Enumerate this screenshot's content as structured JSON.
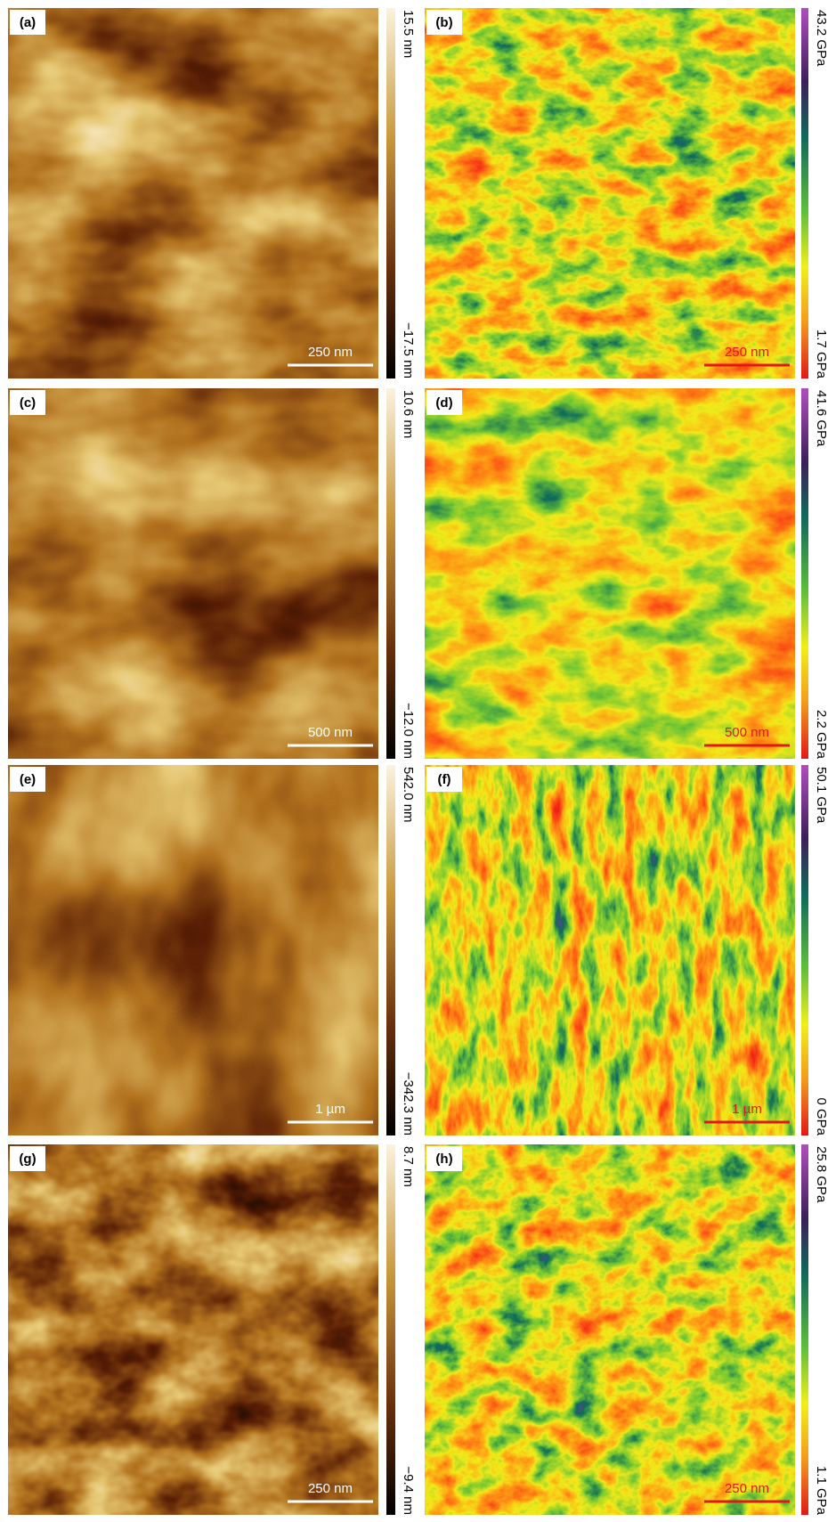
{
  "panels": [
    {
      "label": "(a)",
      "scale_bar": "250 nm",
      "colorbar": {
        "max": "15.5 nm",
        "min": "−17.5 nm"
      }
    },
    {
      "label": "(b)",
      "scale_bar": "250 nm",
      "colorbar": {
        "max": "43.2 GPa",
        "min": "1.7 GPa"
      }
    },
    {
      "label": "(c)",
      "scale_bar": "500 nm",
      "colorbar": {
        "max": "10.6 nm",
        "min": "−12.0 nm"
      }
    },
    {
      "label": "(d)",
      "scale_bar": "500 nm",
      "colorbar": {
        "max": "41.6 GPa",
        "min": "2.2 GPa"
      }
    },
    {
      "label": "(e)",
      "scale_bar": "1 µm",
      "colorbar": {
        "max": "542.0 nm",
        "min": "−342.3 nm"
      }
    },
    {
      "label": "(f)",
      "scale_bar": "1 µm",
      "colorbar": {
        "max": "50.1 GPa",
        "min": "0 GPa"
      }
    },
    {
      "label": "(g)",
      "scale_bar": "250 nm",
      "colorbar": {
        "max": "8.7 nm",
        "min": "−9.4 nm"
      }
    },
    {
      "label": "(h)",
      "scale_bar": "250 nm",
      "colorbar": {
        "max": "25.8 GPa",
        "min": "1.1 GPa"
      }
    }
  ]
}
